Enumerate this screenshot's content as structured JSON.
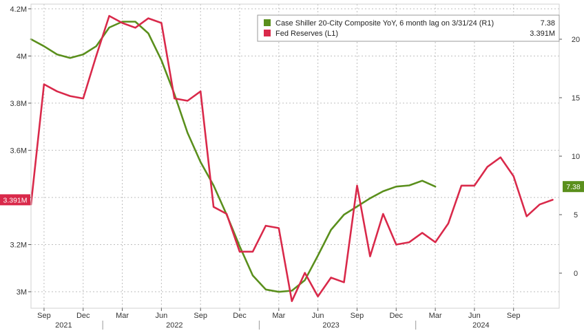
{
  "chart_data": {
    "type": "line",
    "title": "",
    "xlabel": "",
    "legend_position": "top-right",
    "grid": true,
    "x_ticks": [
      {
        "label": "Sep",
        "month": 0
      },
      {
        "label": "Dec",
        "month": 3
      },
      {
        "label": "Mar",
        "month": 6
      },
      {
        "label": "Jun",
        "month": 9
      },
      {
        "label": "Sep",
        "month": 12
      },
      {
        "label": "Dec",
        "month": 15
      },
      {
        "label": "Mar",
        "month": 18
      },
      {
        "label": "Jun",
        "month": 21
      },
      {
        "label": "Sep",
        "month": 24
      },
      {
        "label": "Dec",
        "month": 27
      },
      {
        "label": "Mar",
        "month": 30
      },
      {
        "label": "Jun",
        "month": 33
      },
      {
        "label": "Sep",
        "month": 36
      }
    ],
    "years": [
      {
        "label": "2021",
        "month": 1.5
      },
      {
        "label": "2022",
        "month": 10
      },
      {
        "label": "2023",
        "month": 22
      },
      {
        "label": "2024",
        "month": 33.5
      }
    ],
    "x_month_origin": "Sep 2021",
    "xlim_months": [
      -1,
      39.5
    ],
    "left_axis": {
      "label": "L1",
      "ylim": [
        2.93,
        4.22
      ],
      "ticks": [
        3.0,
        3.2,
        3.4,
        3.6,
        3.8,
        4.0,
        4.2
      ],
      "tick_labels": [
        "3M",
        "3.2M",
        "",
        "3.6M",
        "3.8M",
        "4M",
        "4.2M"
      ]
    },
    "right_axis": {
      "label": "R1",
      "ylim": [
        -3,
        23
      ],
      "ticks": [
        0,
        5,
        10,
        15,
        20
      ],
      "tick_labels": [
        "0",
        "5",
        "10",
        "15",
        "20"
      ]
    },
    "series": [
      {
        "name": "Case Shiller 20-City Composite YoY, 6 month lag on 3/31/24 (R1)",
        "legend_value": "7.38",
        "last_value_tag": "7.38",
        "axis": "right",
        "color": "#5a8f1c",
        "x": [
          -1,
          0,
          1,
          2,
          3,
          4,
          5,
          6,
          7,
          8,
          9,
          10,
          11,
          12,
          13,
          14,
          15,
          16,
          17,
          18,
          19,
          20,
          21,
          22,
          23,
          24,
          25,
          26,
          27,
          28,
          29,
          30
        ],
        "values": [
          20.0,
          19.4,
          18.7,
          18.4,
          18.7,
          19.4,
          21.0,
          21.5,
          21.5,
          20.5,
          18.2,
          15.3,
          12.0,
          9.5,
          7.5,
          5.0,
          2.3,
          -0.2,
          -1.4,
          -1.6,
          -1.5,
          -0.6,
          1.5,
          3.7,
          5.0,
          5.7,
          6.4,
          7.0,
          7.4,
          7.5,
          7.9,
          7.4
        ]
      },
      {
        "name": "Fed Reserves (L1)",
        "legend_value": "3.391M",
        "last_value_tag": "3.391M",
        "axis": "left",
        "color": "#d9294a",
        "x": [
          -1,
          0,
          1,
          2,
          3,
          4,
          5,
          6,
          7,
          8,
          9,
          10,
          11,
          12,
          13,
          14,
          15,
          16,
          17,
          18,
          19,
          20,
          21,
          22,
          23,
          24,
          25,
          26,
          27,
          28,
          29,
          30,
          31,
          32,
          33,
          34,
          35,
          36,
          37,
          38,
          39
        ],
        "values": [
          3.37,
          3.88,
          3.85,
          3.83,
          3.82,
          4.0,
          4.17,
          4.14,
          4.12,
          4.16,
          4.14,
          3.82,
          3.81,
          3.85,
          3.36,
          3.33,
          3.17,
          3.17,
          3.28,
          3.27,
          2.96,
          3.08,
          2.98,
          3.06,
          3.04,
          3.45,
          3.15,
          3.33,
          3.2,
          3.21,
          3.25,
          3.21,
          3.29,
          3.45,
          3.45,
          3.53,
          3.57,
          3.49,
          3.32,
          3.37,
          3.39
        ]
      }
    ]
  }
}
